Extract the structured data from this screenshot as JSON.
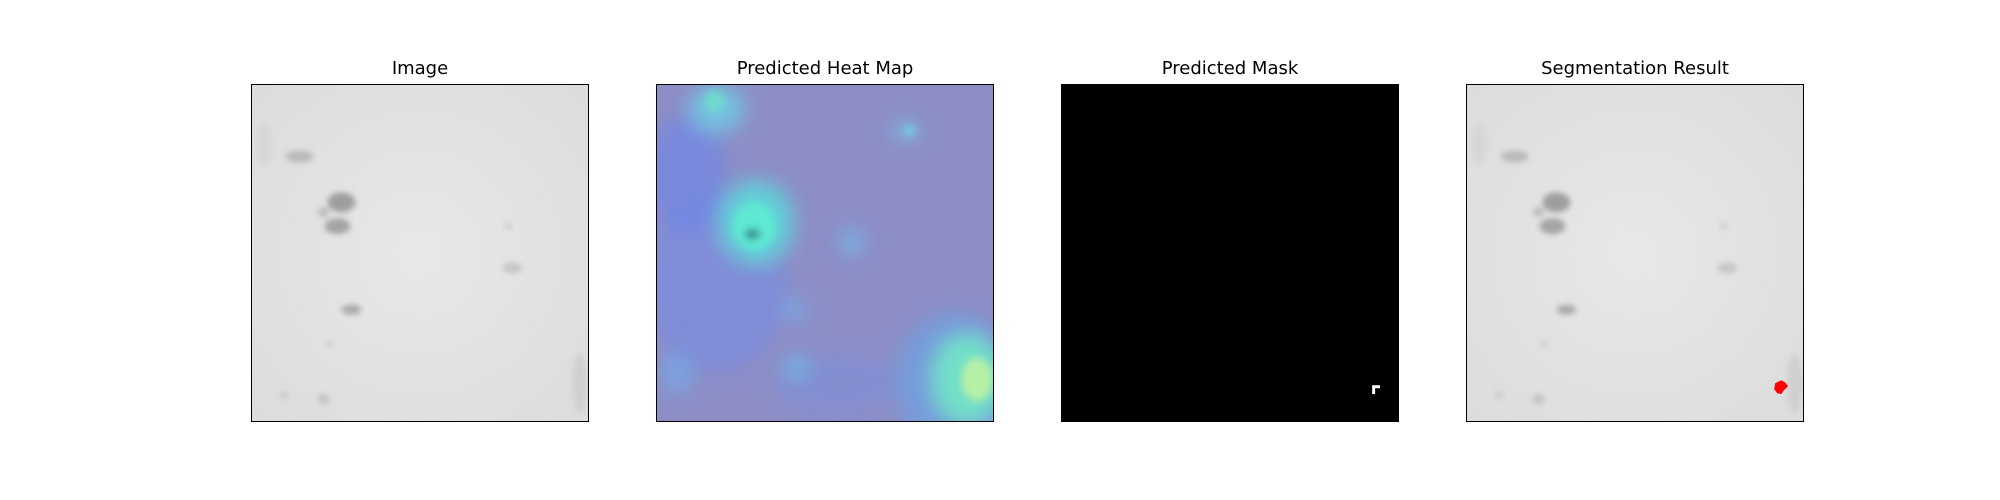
{
  "panels": [
    {
      "title": "Image"
    },
    {
      "title": "Predicted Heat Map"
    },
    {
      "title": "Predicted Mask"
    },
    {
      "title": "Segmentation Result"
    }
  ],
  "colors": {
    "image_background": "#e4e4e4",
    "heatmap_background": "#8f8fc7",
    "heatmap_hot": "#5fe8d2",
    "mask_background": "#000000",
    "mask_foreground": "#ffffff",
    "segmentation_overlay": "#ff0000"
  }
}
